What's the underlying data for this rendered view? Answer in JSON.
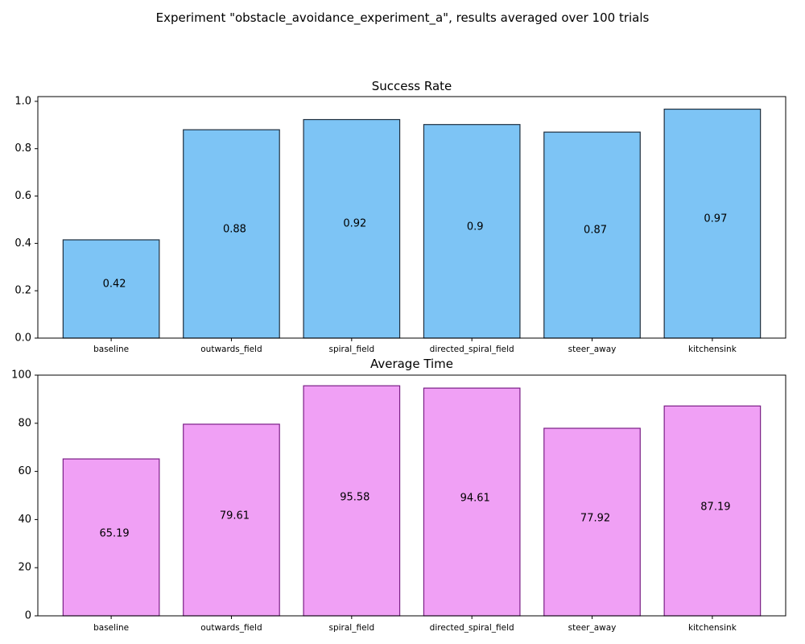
{
  "suptitle": "Experiment \"obstacle_avoidance_experiment_a\", results averaged over 100 trials",
  "chart_data": [
    {
      "type": "bar",
      "title": "Success Rate",
      "categories": [
        "baseline",
        "outwards_field",
        "spiral_field",
        "directed_spiral_field",
        "steer_away",
        "kitchensink"
      ],
      "values": [
        0.415,
        0.88,
        0.923,
        0.902,
        0.87,
        0.967
      ],
      "value_labels": [
        "0.42",
        "0.88",
        "0.92",
        "0.9",
        "0.87",
        "0.97"
      ],
      "ylim": [
        0,
        1.02
      ],
      "yticks": [
        0.0,
        0.2,
        0.4,
        0.6,
        0.8,
        1.0
      ],
      "ytick_labels": [
        "0.0",
        "0.2",
        "0.4",
        "0.6",
        "0.8",
        "1.0"
      ],
      "bar_color": "#7dc4f5",
      "edge_color": "#1f2f3f",
      "grid": false
    },
    {
      "type": "bar",
      "title": "Average Time",
      "categories": [
        "baseline",
        "outwards_field",
        "spiral_field",
        "directed_spiral_field",
        "steer_away",
        "kitchensink"
      ],
      "values": [
        65.19,
        79.61,
        95.58,
        94.61,
        77.92,
        87.19
      ],
      "value_labels": [
        "65.19",
        "79.61",
        "95.58",
        "94.61",
        "77.92",
        "87.19"
      ],
      "ylim": [
        0,
        100
      ],
      "yticks": [
        0,
        20,
        40,
        60,
        80,
        100
      ],
      "ytick_labels": [
        "0",
        "20",
        "40",
        "60",
        "80",
        "100"
      ],
      "bar_color": "#f0a0f5",
      "edge_color": "#7a1f86",
      "grid": false
    }
  ]
}
